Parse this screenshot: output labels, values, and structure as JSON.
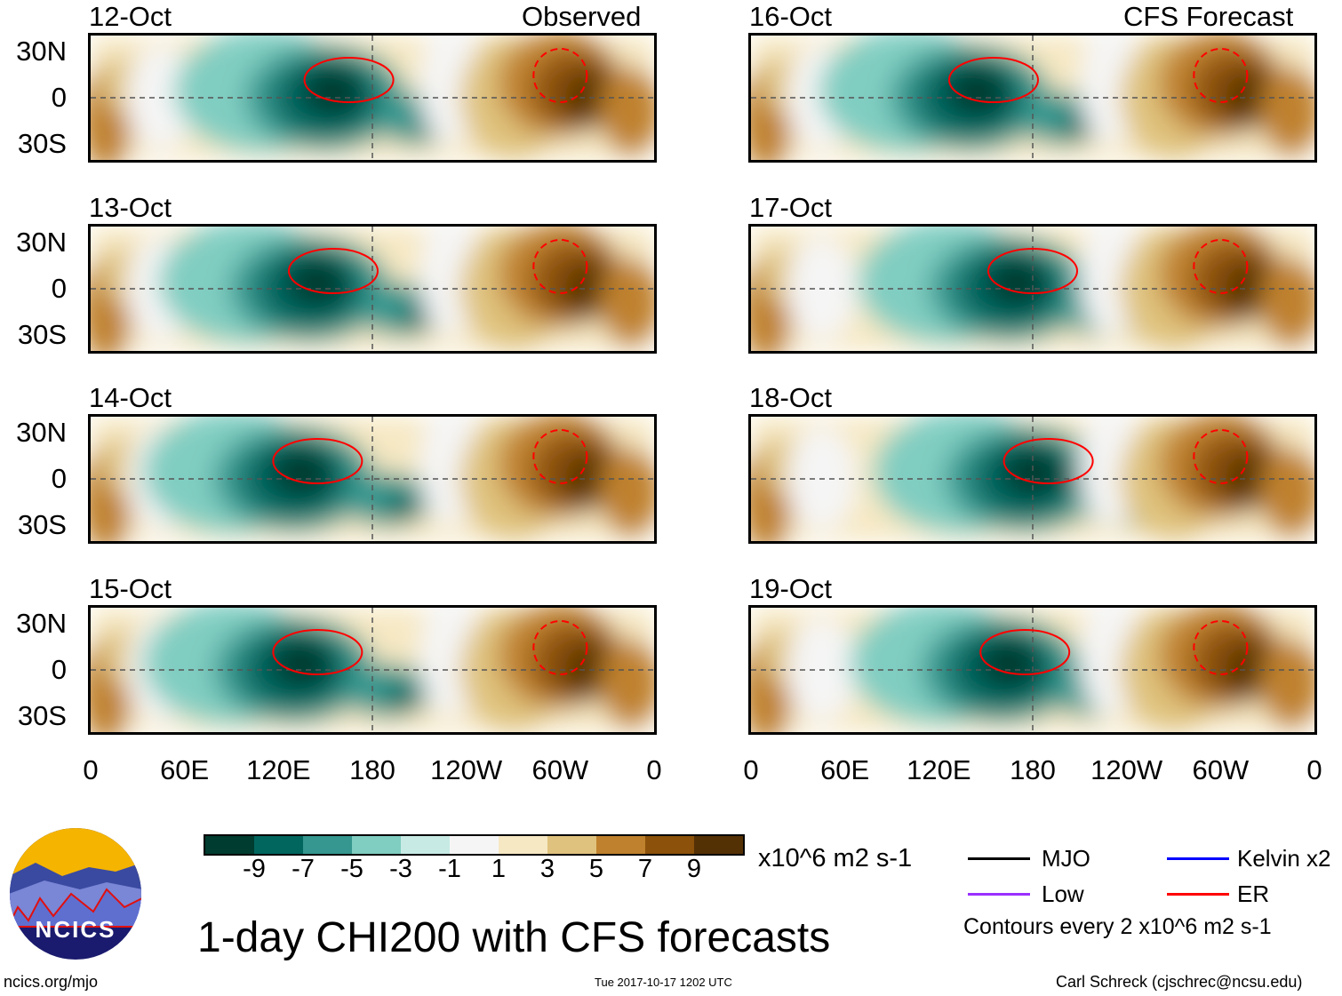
{
  "title": "1-day CHI200 with CFS forecasts",
  "observed_label": "Observed",
  "forecast_label": "CFS Forecast",
  "panels_left": [
    {
      "date": "12-Oct"
    },
    {
      "date": "13-Oct"
    },
    {
      "date": "14-Oct"
    },
    {
      "date": "15-Oct"
    }
  ],
  "panels_right": [
    {
      "date": "16-Oct"
    },
    {
      "date": "17-Oct"
    },
    {
      "date": "18-Oct"
    },
    {
      "date": "19-Oct"
    }
  ],
  "lat_labels": [
    "30N",
    "0",
    "30S"
  ],
  "lon_labels": [
    "0",
    "60E",
    "120E",
    "180",
    "120W",
    "60W",
    "0"
  ],
  "colorbar": {
    "colors": [
      "#003c30",
      "#01665e",
      "#35978f",
      "#80cdc1",
      "#c7eae5",
      "#f5f5f5",
      "#f6e8c3",
      "#dfc27d",
      "#bf812d",
      "#8c510a",
      "#543005"
    ],
    "ticks": [
      "-9",
      "-7",
      "-5",
      "-3",
      "-1",
      "1",
      "3",
      "5",
      "7",
      "9"
    ],
    "units": "x10^6 m2 s-1"
  },
  "legend": [
    {
      "label": "MJO",
      "color": "#000000"
    },
    {
      "label": "Kelvin x2",
      "color": "#0000ff"
    },
    {
      "label": "Low",
      "color": "#9b30ff"
    },
    {
      "label": "ER",
      "color": "#ff0000"
    }
  ],
  "contour_note": "Contours every 2 x10^6 m2 s-1",
  "logo_text": "NCICS",
  "footer": {
    "left": "ncics.org/mjo",
    "center": "Tue 2017-10-17 1202 UTC",
    "right": "Carl Schreck (cjschrec@ncsu.edu)"
  }
}
